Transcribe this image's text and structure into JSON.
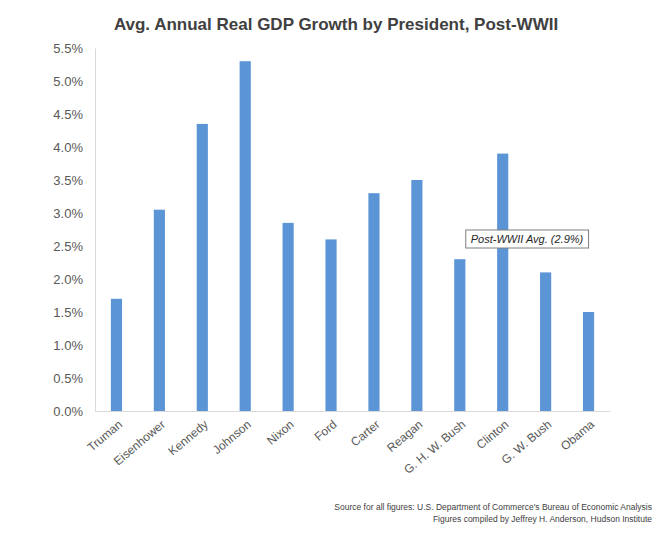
{
  "chart_data": {
    "type": "bar",
    "title": "Avg. Annual Real GDP Growth by President, Post-WWII",
    "categories": [
      "Truman",
      "Eisenhower",
      "Kennedy",
      "Johnson",
      "Nixon",
      "Ford",
      "Carter",
      "Reagan",
      "G. H. W. Bush",
      "Clinton",
      "G. W. Bush",
      "Obama"
    ],
    "values": [
      1.7,
      3.05,
      4.35,
      5.3,
      2.85,
      2.6,
      3.3,
      3.5,
      2.3,
      3.9,
      2.1,
      1.5
    ],
    "color": "#5b95d5",
    "ylim": [
      0,
      5.5
    ],
    "yticks": [
      {
        "value": 0,
        "label": "0.0%"
      },
      {
        "value": 0.5,
        "label": "0.5%"
      },
      {
        "value": 1,
        "label": "1.0%"
      },
      {
        "value": 1.5,
        "label": "1.5%"
      },
      {
        "value": 2,
        "label": "2.0%"
      },
      {
        "value": 2.5,
        "label": "2.5%"
      },
      {
        "value": 3,
        "label": "3.0%"
      },
      {
        "value": 3.5,
        "label": "3.5%"
      },
      {
        "value": 4,
        "label": "4.0%"
      },
      {
        "value": 4.5,
        "label": "4.5%"
      },
      {
        "value": 5,
        "label": "5.0%"
      },
      {
        "value": 5.5,
        "label": "5.5%"
      }
    ],
    "grid": false,
    "annotations": [
      "Post-WWII Avg. (2.9%)"
    ],
    "source": [
      "Source for all figures: U.S. Department of Commerce's Bureau of Economic Analysis",
      "Figures compiled by Jeffrey H. Anderson, Hudson Institute"
    ]
  }
}
